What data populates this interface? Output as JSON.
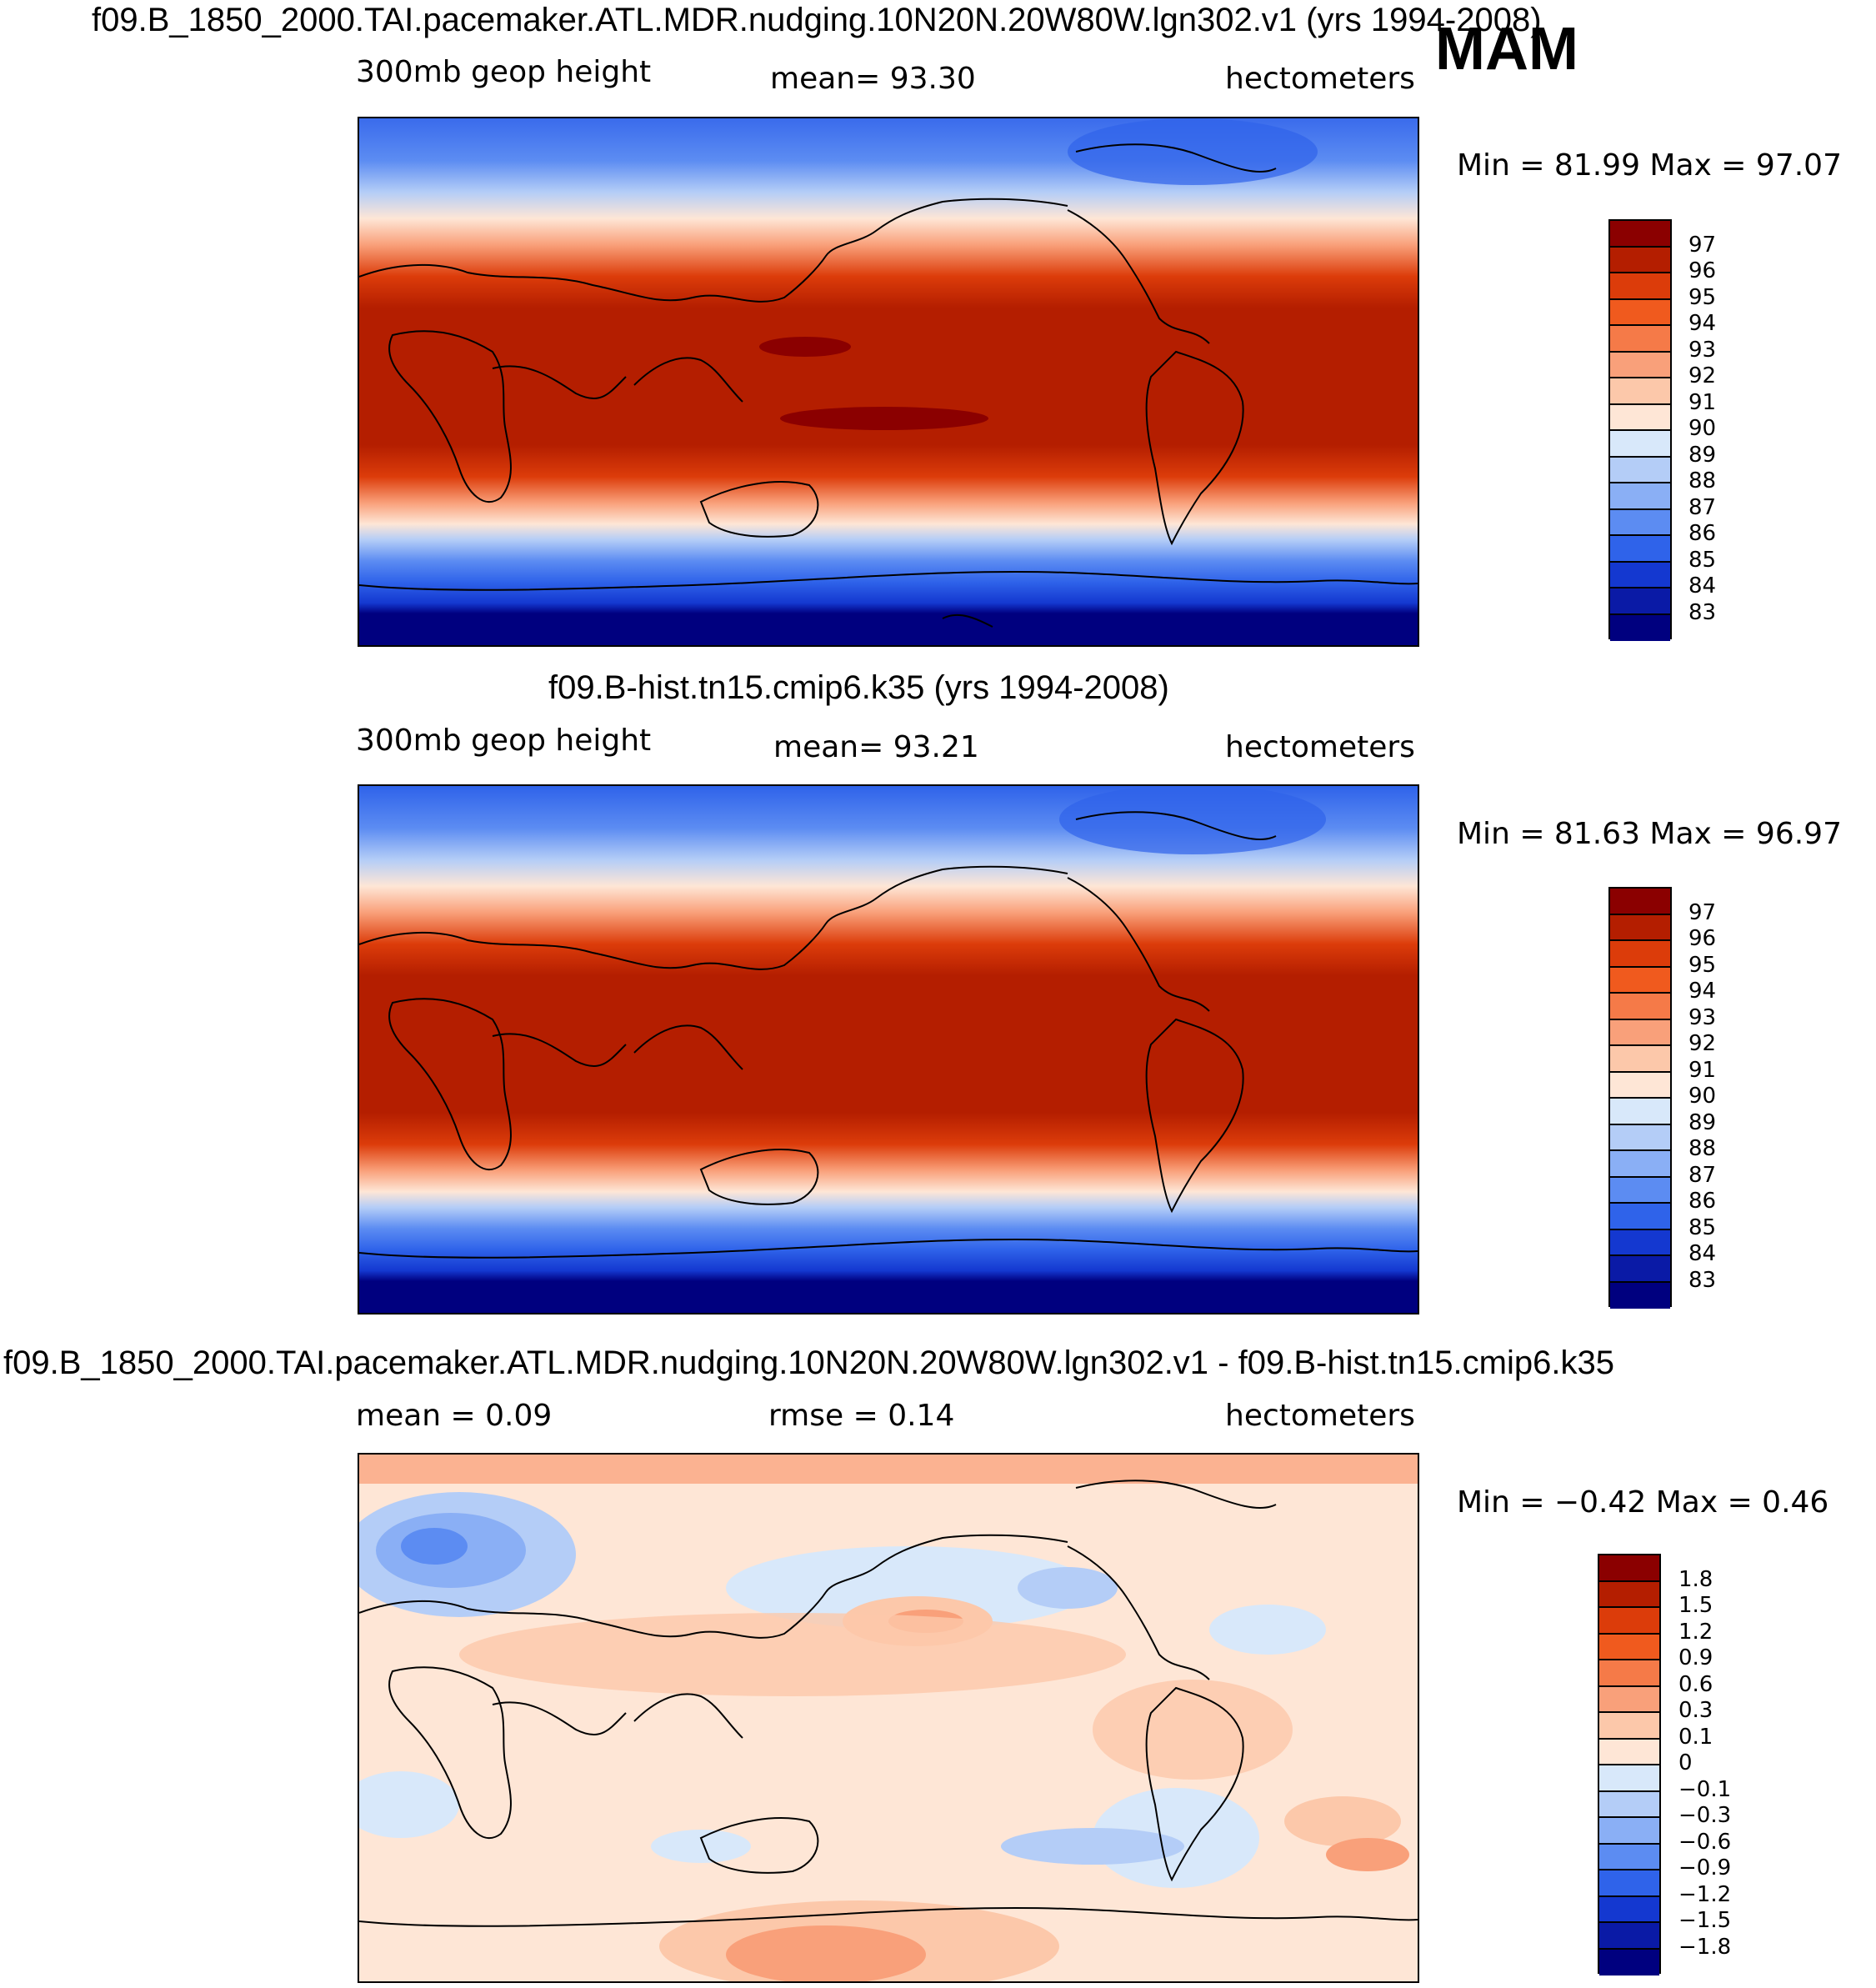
{
  "season": "MAM",
  "panels": [
    {
      "title": "f09.B_1850_2000.TAI.pacemaker.ATL.MDR.nudging.10N20N.20W80W.lgn302.v1 (yrs 1994-2008)",
      "left_label": "300mb  geop  height",
      "center_label": "mean=   93.30",
      "right_label": "hectometers",
      "minmax": "Min =   81.99  Max =   97.07",
      "colorbar_ticks": [
        "97",
        "96",
        "95",
        "94",
        "93",
        "92",
        "91",
        "90",
        "89",
        "88",
        "87",
        "86",
        "85",
        "84",
        "83"
      ],
      "colors": [
        "#8b0000",
        "#b41e00",
        "#dc3c0a",
        "#f05a1e",
        "#f57a48",
        "#f9a07a",
        "#fcc8aa",
        "#fee6d6",
        "#d8e8fa",
        "#b4cdf7",
        "#8aaff5",
        "#5c8cf2",
        "#2f63ea",
        "#1438d0",
        "#0a1aa6",
        "#00007f"
      ]
    },
    {
      "title": "f09.B-hist.tn15.cmip6.k35 (yrs 1994-2008)",
      "left_label": "300mb  geop  height",
      "center_label": "mean=   93.21",
      "right_label": "hectometers",
      "minmax": "Min =   81.63  Max =   96.97",
      "colorbar_ticks": [
        "97",
        "96",
        "95",
        "94",
        "93",
        "92",
        "91",
        "90",
        "89",
        "88",
        "87",
        "86",
        "85",
        "84",
        "83"
      ],
      "colors": [
        "#8b0000",
        "#b41e00",
        "#dc3c0a",
        "#f05a1e",
        "#f57a48",
        "#f9a07a",
        "#fcc8aa",
        "#fee6d6",
        "#d8e8fa",
        "#b4cdf7",
        "#8aaff5",
        "#5c8cf2",
        "#2f63ea",
        "#1438d0",
        "#0a1aa6",
        "#00007f"
      ]
    },
    {
      "title": "f09.B_1850_2000.TAI.pacemaker.ATL.MDR.nudging.10N20N.20W80W.lgn302.v1 - f09.B-hist.tn15.cmip6.k35",
      "left_label": "mean =     0.09",
      "center_label": "rmse =     0.14",
      "right_label": "hectometers",
      "minmax": "Min =   −0.42  Max =     0.46",
      "colorbar_ticks": [
        "1.8",
        "1.5",
        "1.2",
        "0.9",
        "0.6",
        "0.3",
        "0.1",
        "0",
        "−0.1",
        "−0.3",
        "−0.6",
        "−0.9",
        "−1.2",
        "−1.5",
        "−1.8"
      ],
      "colors": [
        "#8b0000",
        "#b41e00",
        "#dc3c0a",
        "#f05a1e",
        "#f57a48",
        "#f9a07a",
        "#fcc8aa",
        "#fee6d6",
        "#d8e8fa",
        "#b4cdf7",
        "#8aaff5",
        "#5c8cf2",
        "#2f63ea",
        "#1438d0",
        "#0a1aa6",
        "#00007f"
      ]
    }
  ]
}
